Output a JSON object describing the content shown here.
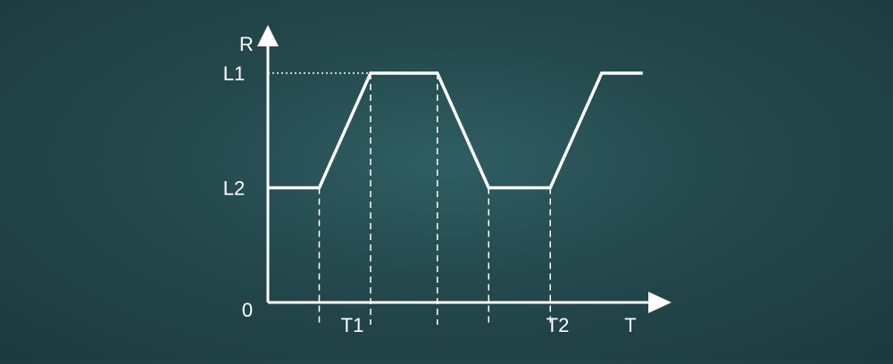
{
  "chart_data": {
    "type": "line",
    "title": "",
    "xlabel": "T",
    "ylabel": "R",
    "origin_label": "0",
    "y_ticks": [
      {
        "label": "L1",
        "value": 2
      },
      {
        "label": "L2",
        "value": 1
      }
    ],
    "x_ticks": [
      {
        "label": "T1",
        "value": 2.6
      },
      {
        "label": "T2",
        "value": 6.6
      }
    ],
    "xlim": [
      0,
      8.5
    ],
    "ylim": [
      0,
      3.1
    ],
    "series": [
      {
        "points": [
          [
            0,
            1
          ],
          [
            1,
            1
          ],
          [
            2,
            2
          ],
          [
            3.3,
            2
          ],
          [
            4.3,
            1
          ],
          [
            5.5,
            1
          ],
          [
            6.5,
            2
          ],
          [
            7.3,
            2
          ]
        ]
      }
    ],
    "dashed_guides_x": [
      1,
      2,
      3.3,
      4.3,
      5.5
    ],
    "dotted_guide_y": 2,
    "grid": false,
    "colors": {
      "line": "#ffffff",
      "axis": "#ffffff",
      "label": "#ffffff"
    }
  }
}
